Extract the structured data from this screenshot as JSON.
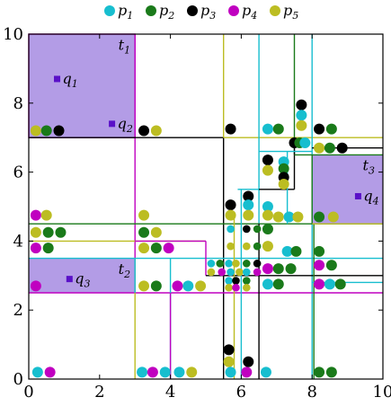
{
  "chart_data": {
    "type": "scatter",
    "title": "",
    "xlabel": "",
    "ylabel": "",
    "xlim": [
      0,
      10
    ],
    "ylim": [
      0,
      10
    ],
    "xticks": [
      "0",
      "2",
      "4",
      "6",
      "8",
      "10"
    ],
    "yticks": [
      "0",
      "2",
      "4",
      "6",
      "8",
      "10"
    ],
    "grid": false,
    "legend_position": "top",
    "colors": {
      "p1": "#17becf",
      "p2": "#1a7a1a",
      "p3": "#000000",
      "p4": "#c000c0",
      "p5": "#bcbd22",
      "query": "#5a10c8",
      "query_box_fill": "#b39ce6"
    },
    "legend": [
      {
        "id": "p1",
        "label": "p",
        "sub": "1"
      },
      {
        "id": "p2",
        "label": "p",
        "sub": "2"
      },
      {
        "id": "p3",
        "label": "p",
        "sub": "3"
      },
      {
        "id": "p4",
        "label": "p",
        "sub": "4"
      },
      {
        "id": "p5",
        "label": "p",
        "sub": "5"
      }
    ],
    "query_boxes": [
      {
        "x0": 0,
        "y0": 7,
        "x1": 3,
        "y1": 10
      },
      {
        "x0": 8,
        "y0": 4.5,
        "x1": 10,
        "y1": 6.5
      },
      {
        "x0": 0,
        "y0": 2.5,
        "x1": 3,
        "y1": 3.5
      }
    ],
    "box_labels": [
      {
        "label": "t",
        "sub": "1",
        "x": 2.7,
        "y": 9.55
      },
      {
        "label": "t",
        "sub": "2",
        "x": 2.7,
        "y": 3.05
      },
      {
        "label": "t",
        "sub": "3",
        "x": 9.6,
        "y": 6.05
      }
    ],
    "query_points": [
      {
        "label": "q",
        "sub": "1",
        "x": 0.8,
        "y": 8.7
      },
      {
        "label": "q",
        "sub": "2",
        "x": 2.35,
        "y": 7.4
      },
      {
        "label": "q",
        "sub": "3",
        "x": 1.15,
        "y": 2.9
      },
      {
        "label": "q",
        "sub": "4",
        "x": 9.3,
        "y": 5.3
      }
    ],
    "rects": [
      {
        "c": "p4",
        "x0": 0,
        "y0": 7,
        "x1": 3,
        "y1": 10
      },
      {
        "c": "p4",
        "x0": 3,
        "y0": 2.5,
        "x1": 3,
        "y1": 10
      },
      {
        "c": "p3",
        "x0": 0,
        "y0": 7,
        "x1": 5.5,
        "y1": 7
      },
      {
        "c": "p3",
        "x0": 5.5,
        "y0": 0,
        "x1": 5.5,
        "y1": 7
      },
      {
        "c": "p5",
        "x0": 5.5,
        "y0": 7,
        "x1": 10,
        "y1": 7
      },
      {
        "c": "p5",
        "x0": 5.5,
        "y0": 7,
        "x1": 5.5,
        "y1": 10
      },
      {
        "c": "p1",
        "x0": 6.5,
        "y0": 4.5,
        "x1": 6.5,
        "y1": 10
      },
      {
        "c": "p2",
        "x0": 7.5,
        "y0": 6.5,
        "x1": 7.5,
        "y1": 10
      },
      {
        "c": "p1",
        "x0": 8,
        "y0": 0,
        "x1": 8,
        "y1": 10
      },
      {
        "c": "p2",
        "x0": 0,
        "y0": 4.5,
        "x1": 10,
        "y1": 4.5
      },
      {
        "c": "p1",
        "x0": 0,
        "y0": 3.5,
        "x1": 10,
        "y1": 3.5
      },
      {
        "c": "p4",
        "x0": 0,
        "y0": 2.5,
        "x1": 10,
        "y1": 2.5
      },
      {
        "c": "p5",
        "x0": 0,
        "y0": 4.0,
        "x1": 5,
        "y1": 4.0
      },
      {
        "c": "p4",
        "x0": 3,
        "y0": 4.0,
        "x1": 5,
        "y1": 4.0
      },
      {
        "c": "p4",
        "x0": 5,
        "y0": 3.0,
        "x1": 5,
        "y1": 4.0
      },
      {
        "c": "p3",
        "x0": 5,
        "y0": 3.0,
        "x1": 10,
        "y1": 3.0
      },
      {
        "c": "p5",
        "x0": 3,
        "y0": 0,
        "x1": 3,
        "y1": 3.5
      },
      {
        "c": "p1",
        "x0": 4,
        "y0": 0,
        "x1": 4,
        "y1": 3.5
      },
      {
        "c": "p4",
        "x0": 4,
        "y0": 0,
        "x1": 4,
        "y1": 2.5
      },
      {
        "c": "p1",
        "x0": 6.0,
        "y0": 0,
        "x1": 6.0,
        "y1": 5.5
      },
      {
        "c": "p5",
        "x0": 5.8,
        "y0": 0,
        "x1": 5.8,
        "y1": 4.8
      },
      {
        "c": "p3",
        "x0": 6.5,
        "y0": 0,
        "x1": 6.5,
        "y1": 4.5
      },
      {
        "c": "p2",
        "x0": 8.05,
        "y0": 0,
        "x1": 8.05,
        "y1": 4.5
      },
      {
        "c": "p1",
        "x0": 5.9,
        "y0": 5.5,
        "x1": 6.5,
        "y1": 5.5
      },
      {
        "c": "p3",
        "x0": 6.5,
        "y0": 5.5,
        "x1": 7.5,
        "y1": 5.5
      },
      {
        "c": "p3",
        "x0": 7.5,
        "y0": 5.5,
        "x1": 7.5,
        "y1": 6.7
      },
      {
        "c": "p1",
        "x0": 7.3,
        "y0": 4.5,
        "x1": 7.3,
        "y1": 6.6
      },
      {
        "c": "p1",
        "x0": 6.5,
        "y0": 6.6,
        "x1": 8,
        "y1": 6.6
      },
      {
        "c": "p2",
        "x0": 7.5,
        "y0": 6.5,
        "x1": 10,
        "y1": 6.5
      },
      {
        "c": "p3",
        "x0": 8,
        "y0": 6.7,
        "x1": 10,
        "y1": 6.7
      },
      {
        "c": "p2",
        "x0": 8,
        "y0": 4.5,
        "x1": 8,
        "y1": 6.5
      },
      {
        "c": "p5",
        "x0": 8,
        "y0": 4.5,
        "x1": 10,
        "y1": 4.5
      },
      {
        "c": "p1",
        "x0": 8,
        "y0": 2.8,
        "x1": 10,
        "y1": 2.8
      },
      {
        "c": "p1",
        "x0": 3,
        "y0": 2.5,
        "x1": 3,
        "y1": 3.5
      }
    ],
    "points": [
      {
        "c": "p5",
        "x": 0.2,
        "y": 7.2
      },
      {
        "c": "p2",
        "x": 0.5,
        "y": 7.2
      },
      {
        "c": "p3",
        "x": 0.85,
        "y": 7.2
      },
      {
        "c": "p3",
        "x": 3.25,
        "y": 7.2
      },
      {
        "c": "p5",
        "x": 3.6,
        "y": 7.2
      },
      {
        "c": "p3",
        "x": 5.7,
        "y": 7.25
      },
      {
        "c": "p1",
        "x": 6.75,
        "y": 7.25
      },
      {
        "c": "p2",
        "x": 7.05,
        "y": 7.25
      },
      {
        "c": "p3",
        "x": 7.7,
        "y": 7.95
      },
      {
        "c": "p1",
        "x": 7.7,
        "y": 7.65
      },
      {
        "c": "p5",
        "x": 7.7,
        "y": 7.35
      },
      {
        "c": "p3",
        "x": 8.2,
        "y": 7.25
      },
      {
        "c": "p2",
        "x": 8.55,
        "y": 7.25
      },
      {
        "c": "p3",
        "x": 7.5,
        "y": 6.85
      },
      {
        "c": "p2",
        "x": 7.65,
        "y": 6.85
      },
      {
        "c": "p1",
        "x": 7.8,
        "y": 6.85
      },
      {
        "c": "p5",
        "x": 8.2,
        "y": 6.7
      },
      {
        "c": "p2",
        "x": 8.5,
        "y": 6.7
      },
      {
        "c": "p3",
        "x": 8.85,
        "y": 6.7
      },
      {
        "c": "p3",
        "x": 6.75,
        "y": 6.35
      },
      {
        "c": "p5",
        "x": 6.75,
        "y": 6.05
      },
      {
        "c": "p1",
        "x": 7.2,
        "y": 6.3
      },
      {
        "c": "p2",
        "x": 7.2,
        "y": 6.1
      },
      {
        "c": "p3",
        "x": 7.2,
        "y": 5.85
      },
      {
        "c": "p5",
        "x": 7.2,
        "y": 5.65
      },
      {
        "c": "p3",
        "x": 6.2,
        "y": 5.3
      },
      {
        "c": "p3",
        "x": 5.7,
        "y": 5.05
      },
      {
        "c": "p1",
        "x": 6.2,
        "y": 5.05
      },
      {
        "c": "p1",
        "x": 6.75,
        "y": 5.0
      },
      {
        "c": "p5",
        "x": 5.7,
        "y": 4.75
      },
      {
        "c": "p5",
        "x": 6.2,
        "y": 4.75
      },
      {
        "c": "p5",
        "x": 6.75,
        "y": 4.75
      },
      {
        "c": "p5",
        "x": 7.05,
        "y": 4.7
      },
      {
        "c": "p1",
        "x": 7.35,
        "y": 4.7
      },
      {
        "c": "p5",
        "x": 7.6,
        "y": 4.7
      },
      {
        "c": "p2",
        "x": 8.2,
        "y": 4.7
      },
      {
        "c": "p5",
        "x": 8.6,
        "y": 4.7
      },
      {
        "c": "p4",
        "x": 0.2,
        "y": 4.75
      },
      {
        "c": "p5",
        "x": 0.5,
        "y": 4.75
      },
      {
        "c": "p5",
        "x": 3.25,
        "y": 4.75
      },
      {
        "c": "p5",
        "x": 0.2,
        "y": 4.25
      },
      {
        "c": "p2",
        "x": 0.55,
        "y": 4.25
      },
      {
        "c": "p2",
        "x": 0.9,
        "y": 4.25
      },
      {
        "c": "p2",
        "x": 3.25,
        "y": 4.25
      },
      {
        "c": "p5",
        "x": 3.6,
        "y": 4.25
      },
      {
        "c": "p1",
        "x": 5.7,
        "y": 4.35
      },
      {
        "c": "p3",
        "x": 6.15,
        "y": 4.35
      },
      {
        "c": "p2",
        "x": 6.45,
        "y": 4.35
      },
      {
        "c": "p2",
        "x": 6.75,
        "y": 4.35
      },
      {
        "c": "p4",
        "x": 0.2,
        "y": 3.8
      },
      {
        "c": "p2",
        "x": 0.55,
        "y": 3.8
      },
      {
        "c": "p5",
        "x": 3.25,
        "y": 3.8
      },
      {
        "c": "p2",
        "x": 3.6,
        "y": 3.8
      },
      {
        "c": "p4",
        "x": 3.95,
        "y": 3.8
      },
      {
        "c": "p5",
        "x": 5.7,
        "y": 3.85
      },
      {
        "c": "p5",
        "x": 6.15,
        "y": 3.85
      },
      {
        "c": "p2",
        "x": 6.45,
        "y": 3.85
      },
      {
        "c": "p5",
        "x": 6.75,
        "y": 3.85
      },
      {
        "c": "p1",
        "x": 7.3,
        "y": 3.7
      },
      {
        "c": "p2",
        "x": 7.55,
        "y": 3.7
      },
      {
        "c": "p2",
        "x": 8.2,
        "y": 3.7
      },
      {
        "c": "p1",
        "x": 5.15,
        "y": 3.35
      },
      {
        "c": "p2",
        "x": 5.4,
        "y": 3.35
      },
      {
        "c": "p1",
        "x": 5.65,
        "y": 3.35
      },
      {
        "c": "p5",
        "x": 5.85,
        "y": 3.35
      },
      {
        "c": "p2",
        "x": 6.15,
        "y": 3.35
      },
      {
        "c": "p3",
        "x": 6.45,
        "y": 3.35
      },
      {
        "c": "p5",
        "x": 5.15,
        "y": 3.1
      },
      {
        "c": "p4",
        "x": 5.45,
        "y": 3.1
      },
      {
        "c": "p1",
        "x": 5.7,
        "y": 3.1
      },
      {
        "c": "p5",
        "x": 5.95,
        "y": 3.1
      },
      {
        "c": "p1",
        "x": 6.15,
        "y": 3.1
      },
      {
        "c": "p4",
        "x": 6.45,
        "y": 3.1
      },
      {
        "c": "p4",
        "x": 6.75,
        "y": 3.2
      },
      {
        "c": "p2",
        "x": 7.05,
        "y": 3.2
      },
      {
        "c": "p2",
        "x": 7.4,
        "y": 3.2
      },
      {
        "c": "p4",
        "x": 8.2,
        "y": 3.3
      },
      {
        "c": "p2",
        "x": 8.55,
        "y": 3.3
      },
      {
        "c": "p1",
        "x": 5.65,
        "y": 2.85
      },
      {
        "c": "p3",
        "x": 5.85,
        "y": 2.85
      },
      {
        "c": "p2",
        "x": 6.15,
        "y": 2.85
      },
      {
        "c": "p5",
        "x": 5.65,
        "y": 2.65
      },
      {
        "c": "p4",
        "x": 5.85,
        "y": 2.65
      },
      {
        "c": "p5",
        "x": 6.15,
        "y": 2.65
      },
      {
        "c": "p4",
        "x": 0.2,
        "y": 2.7
      },
      {
        "c": "p5",
        "x": 3.25,
        "y": 2.7
      },
      {
        "c": "p2",
        "x": 3.6,
        "y": 2.7
      },
      {
        "c": "p4",
        "x": 4.2,
        "y": 2.7
      },
      {
        "c": "p1",
        "x": 4.5,
        "y": 2.7
      },
      {
        "c": "p5",
        "x": 4.85,
        "y": 2.7
      },
      {
        "c": "p1",
        "x": 6.75,
        "y": 2.75
      },
      {
        "c": "p2",
        "x": 7.05,
        "y": 2.75
      },
      {
        "c": "p4",
        "x": 8.2,
        "y": 2.75
      },
      {
        "c": "p1",
        "x": 8.5,
        "y": 2.75
      },
      {
        "c": "p2",
        "x": 8.8,
        "y": 2.75
      },
      {
        "c": "p3",
        "x": 5.65,
        "y": 0.85
      },
      {
        "c": "p5",
        "x": 5.65,
        "y": 0.5
      },
      {
        "c": "p3",
        "x": 6.2,
        "y": 0.5
      },
      {
        "c": "p1",
        "x": 0.25,
        "y": 0.2
      },
      {
        "c": "p4",
        "x": 0.6,
        "y": 0.2
      },
      {
        "c": "p1",
        "x": 3.2,
        "y": 0.2
      },
      {
        "c": "p4",
        "x": 3.5,
        "y": 0.2
      },
      {
        "c": "p1",
        "x": 3.85,
        "y": 0.2
      },
      {
        "c": "p1",
        "x": 4.25,
        "y": 0.2
      },
      {
        "c": "p5",
        "x": 4.6,
        "y": 0.2
      },
      {
        "c": "p1",
        "x": 5.7,
        "y": 0.2
      },
      {
        "c": "p4",
        "x": 6.15,
        "y": 0.2
      },
      {
        "c": "p1",
        "x": 6.7,
        "y": 0.2
      },
      {
        "c": "p2",
        "x": 8.2,
        "y": 0.2
      },
      {
        "c": "p2",
        "x": 8.55,
        "y": 0.2
      }
    ]
  }
}
